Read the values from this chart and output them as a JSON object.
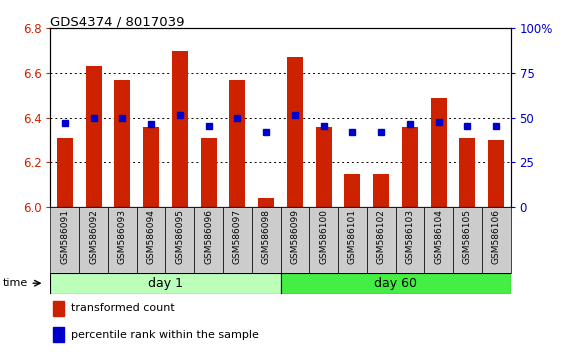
{
  "title": "GDS4374 / 8017039",
  "samples": [
    "GSM586091",
    "GSM586092",
    "GSM586093",
    "GSM586094",
    "GSM586095",
    "GSM586096",
    "GSM586097",
    "GSM586098",
    "GSM586099",
    "GSM586100",
    "GSM586101",
    "GSM586102",
    "GSM586103",
    "GSM586104",
    "GSM586105",
    "GSM586106"
  ],
  "transformed_count": [
    6.31,
    6.63,
    6.57,
    6.36,
    6.7,
    6.31,
    6.57,
    6.04,
    6.67,
    6.36,
    6.15,
    6.15,
    6.36,
    6.49,
    6.31,
    6.3
  ],
  "percentile_rank": [
    6.375,
    6.4,
    6.4,
    6.37,
    6.41,
    6.365,
    6.4,
    6.335,
    6.41,
    6.365,
    6.335,
    6.335,
    6.37,
    6.38,
    6.365,
    6.365
  ],
  "bar_color": "#cc2200",
  "dot_color": "#0000cc",
  "bar_base": 6.0,
  "ylim": [
    6.0,
    6.8
  ],
  "y2lim": [
    0,
    100
  ],
  "yticks": [
    6.0,
    6.2,
    6.4,
    6.6,
    6.8
  ],
  "y2ticks": [
    0,
    25,
    50,
    75,
    100
  ],
  "day1_label": "day 1",
  "day60_label": "day 60",
  "day1_color": "#bbffbb",
  "day60_color": "#44ee44",
  "time_label": "time",
  "legend_bar": "transformed count",
  "legend_dot": "percentile rank within the sample",
  "tick_bg": "#cccccc",
  "bar_width": 0.55,
  "fig_width": 5.61,
  "fig_height": 3.54,
  "dpi": 100
}
